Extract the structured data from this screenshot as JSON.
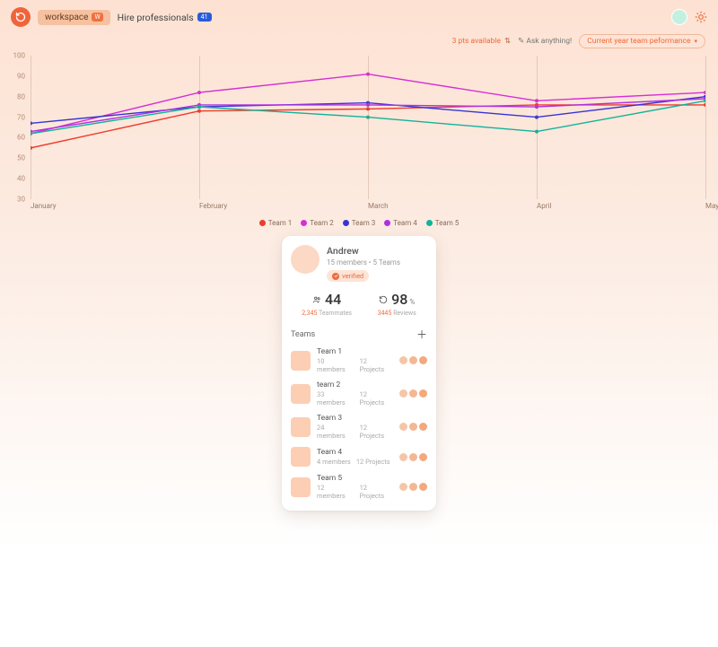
{
  "topbar": {
    "workspace_label": "workspace",
    "workspace_badge": "W",
    "hire_label": "Hire professionals",
    "hire_count": "41"
  },
  "subbar": {
    "pts_icon": "3",
    "pts_text": "pts available",
    "ask_text": "Ask anything!",
    "perf_text": "Current year team peformance"
  },
  "chart": {
    "type": "line",
    "ylim": [
      30,
      100
    ],
    "yticks": [
      30,
      40,
      50,
      60,
      70,
      80,
      90,
      100
    ],
    "categories": [
      "January",
      "February",
      "March",
      "April",
      "May"
    ],
    "grid_color": "rgba(160,110,85,0.25)",
    "axis_label_color": "#9a7965",
    "series": [
      {
        "name": "Team 1",
        "color": "#ef3b2c",
        "values": [
          55,
          73,
          74,
          76,
          76
        ]
      },
      {
        "name": "Team 2",
        "color": "#d62fd6",
        "values": [
          62,
          82,
          91,
          78,
          82
        ]
      },
      {
        "name": "Team 3",
        "color": "#3734d6",
        "values": [
          67,
          75,
          77,
          70,
          80
        ]
      },
      {
        "name": "Team 4",
        "color": "#b030e0",
        "values": [
          63,
          76,
          76,
          75,
          79
        ]
      },
      {
        "name": "Team 5",
        "color": "#10b39a",
        "values": [
          62,
          75,
          70,
          63,
          78
        ]
      }
    ]
  },
  "card": {
    "name": "Andrew",
    "subtitle": "15 members • 5 Teams",
    "verified_label": "verified",
    "stats": [
      {
        "icon": "users",
        "value": "44",
        "unit": "",
        "accent": "2,345",
        "muted": "Teammates"
      },
      {
        "icon": "refresh",
        "value": "98",
        "unit": "%",
        "accent": "3445",
        "muted": "Reviews"
      }
    ],
    "teams_header": "Teams",
    "teams": [
      {
        "name": "Team 1",
        "members": "10 members",
        "projects": "12 Projects"
      },
      {
        "name": "team 2",
        "members": "33 members",
        "projects": "12 Projects"
      },
      {
        "name": "Team 3",
        "members": "24 members",
        "projects": "12 Projects"
      },
      {
        "name": "Team 4",
        "members": "4 members",
        "projects": "12 Projects"
      },
      {
        "name": "Team 5",
        "members": "12 members",
        "projects": "12 Projects"
      }
    ],
    "dot_colors": [
      "#f6c5a8",
      "#f4b794",
      "#f2a97d"
    ]
  }
}
